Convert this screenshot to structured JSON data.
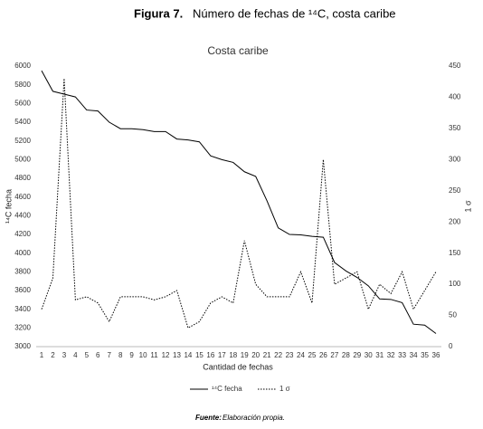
{
  "figure": {
    "label": "Figura 7.",
    "title": "Número de fechas de ¹⁴C, costa caribe"
  },
  "source": {
    "label": "Fuente:",
    "text": "Elaboración propia."
  },
  "chart_data": {
    "type": "line",
    "title": "Costa caribe",
    "xlabel": "Cantidad de fechas",
    "ylabel": "¹⁴C fecha",
    "y2label": "1 σ",
    "categories": [
      1,
      2,
      3,
      4,
      5,
      6,
      7,
      8,
      9,
      10,
      11,
      12,
      13,
      14,
      15,
      16,
      17,
      18,
      19,
      20,
      21,
      22,
      23,
      24,
      25,
      26,
      27,
      28,
      29,
      30,
      31,
      32,
      33,
      34,
      35,
      36
    ],
    "ylim": [
      3000,
      6000
    ],
    "yticks": [
      3000,
      3200,
      3400,
      3600,
      3800,
      4000,
      4200,
      4400,
      4600,
      4800,
      5000,
      5200,
      5400,
      5600,
      5800,
      6000
    ],
    "y2lim": [
      0,
      450
    ],
    "y2ticks": [
      0,
      50,
      100,
      150,
      200,
      250,
      300,
      350,
      400,
      450
    ],
    "grid": false,
    "legend": "bottom",
    "series": [
      {
        "name": "¹⁴C fecha",
        "color": "#000000",
        "dash": "solid",
        "values": [
          5950,
          5730,
          5700,
          5670,
          5530,
          5520,
          5400,
          5330,
          5330,
          5320,
          5300,
          5300,
          5220,
          5210,
          5190,
          5040,
          5000,
          4970,
          4870,
          4820,
          4560,
          4270,
          4200,
          4195,
          4180,
          4170,
          3900,
          3810,
          3740,
          3650,
          3510,
          3505,
          3470,
          3240,
          3230,
          3140
        ]
      },
      {
        "name": "1 σ",
        "color": "#000000",
        "dash": "dotted",
        "axis": "y2",
        "values": [
          60,
          110,
          430,
          75,
          80,
          70,
          40,
          80,
          80,
          80,
          75,
          80,
          90,
          30,
          40,
          70,
          80,
          70,
          170,
          100,
          80,
          80,
          80,
          120,
          70,
          300,
          100,
          110,
          120,
          60,
          100,
          85,
          120,
          60,
          90,
          120
        ]
      }
    ]
  }
}
